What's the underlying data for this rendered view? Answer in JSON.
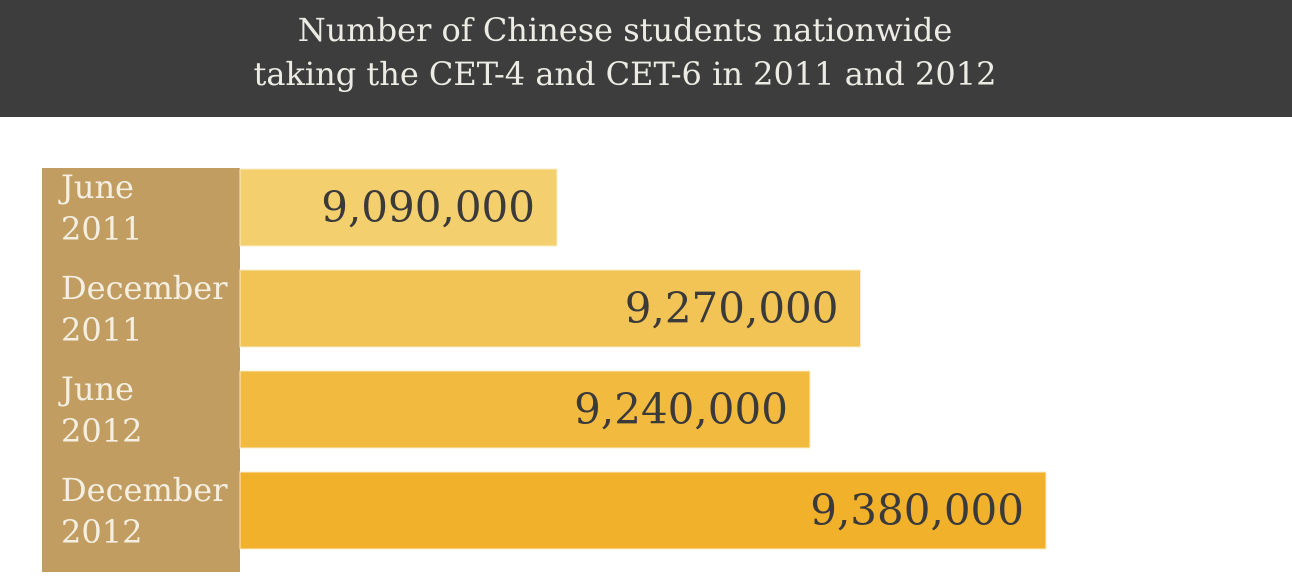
{
  "title_lines": [
    "Number of Chinese students nationwide",
    "taking the CET-4 and CET-6 in 2011 and 2012"
  ],
  "chart_data": {
    "type": "bar",
    "orientation": "horizontal",
    "title": "Number of Chinese students nationwide taking the CET-4 and CET-6 in 2011 and 2012",
    "categories": [
      [
        "June",
        "2011"
      ],
      [
        "December",
        "2011"
      ],
      [
        "June",
        "2012"
      ],
      [
        "December",
        "2012"
      ]
    ],
    "values": [
      9090000,
      9270000,
      9240000,
      9380000
    ],
    "value_labels": [
      "9,090,000",
      "9,270,000",
      "9,240,000",
      "9,380,000"
    ],
    "bar_colors": [
      "#f3cf6d",
      "#f2c456",
      "#f2bb3f",
      "#f1b12b"
    ],
    "label_column_color": "#c19d62",
    "header_color": "#3d3d3d",
    "xlabel": "",
    "ylabel": "",
    "grid": false,
    "legend": "none"
  }
}
